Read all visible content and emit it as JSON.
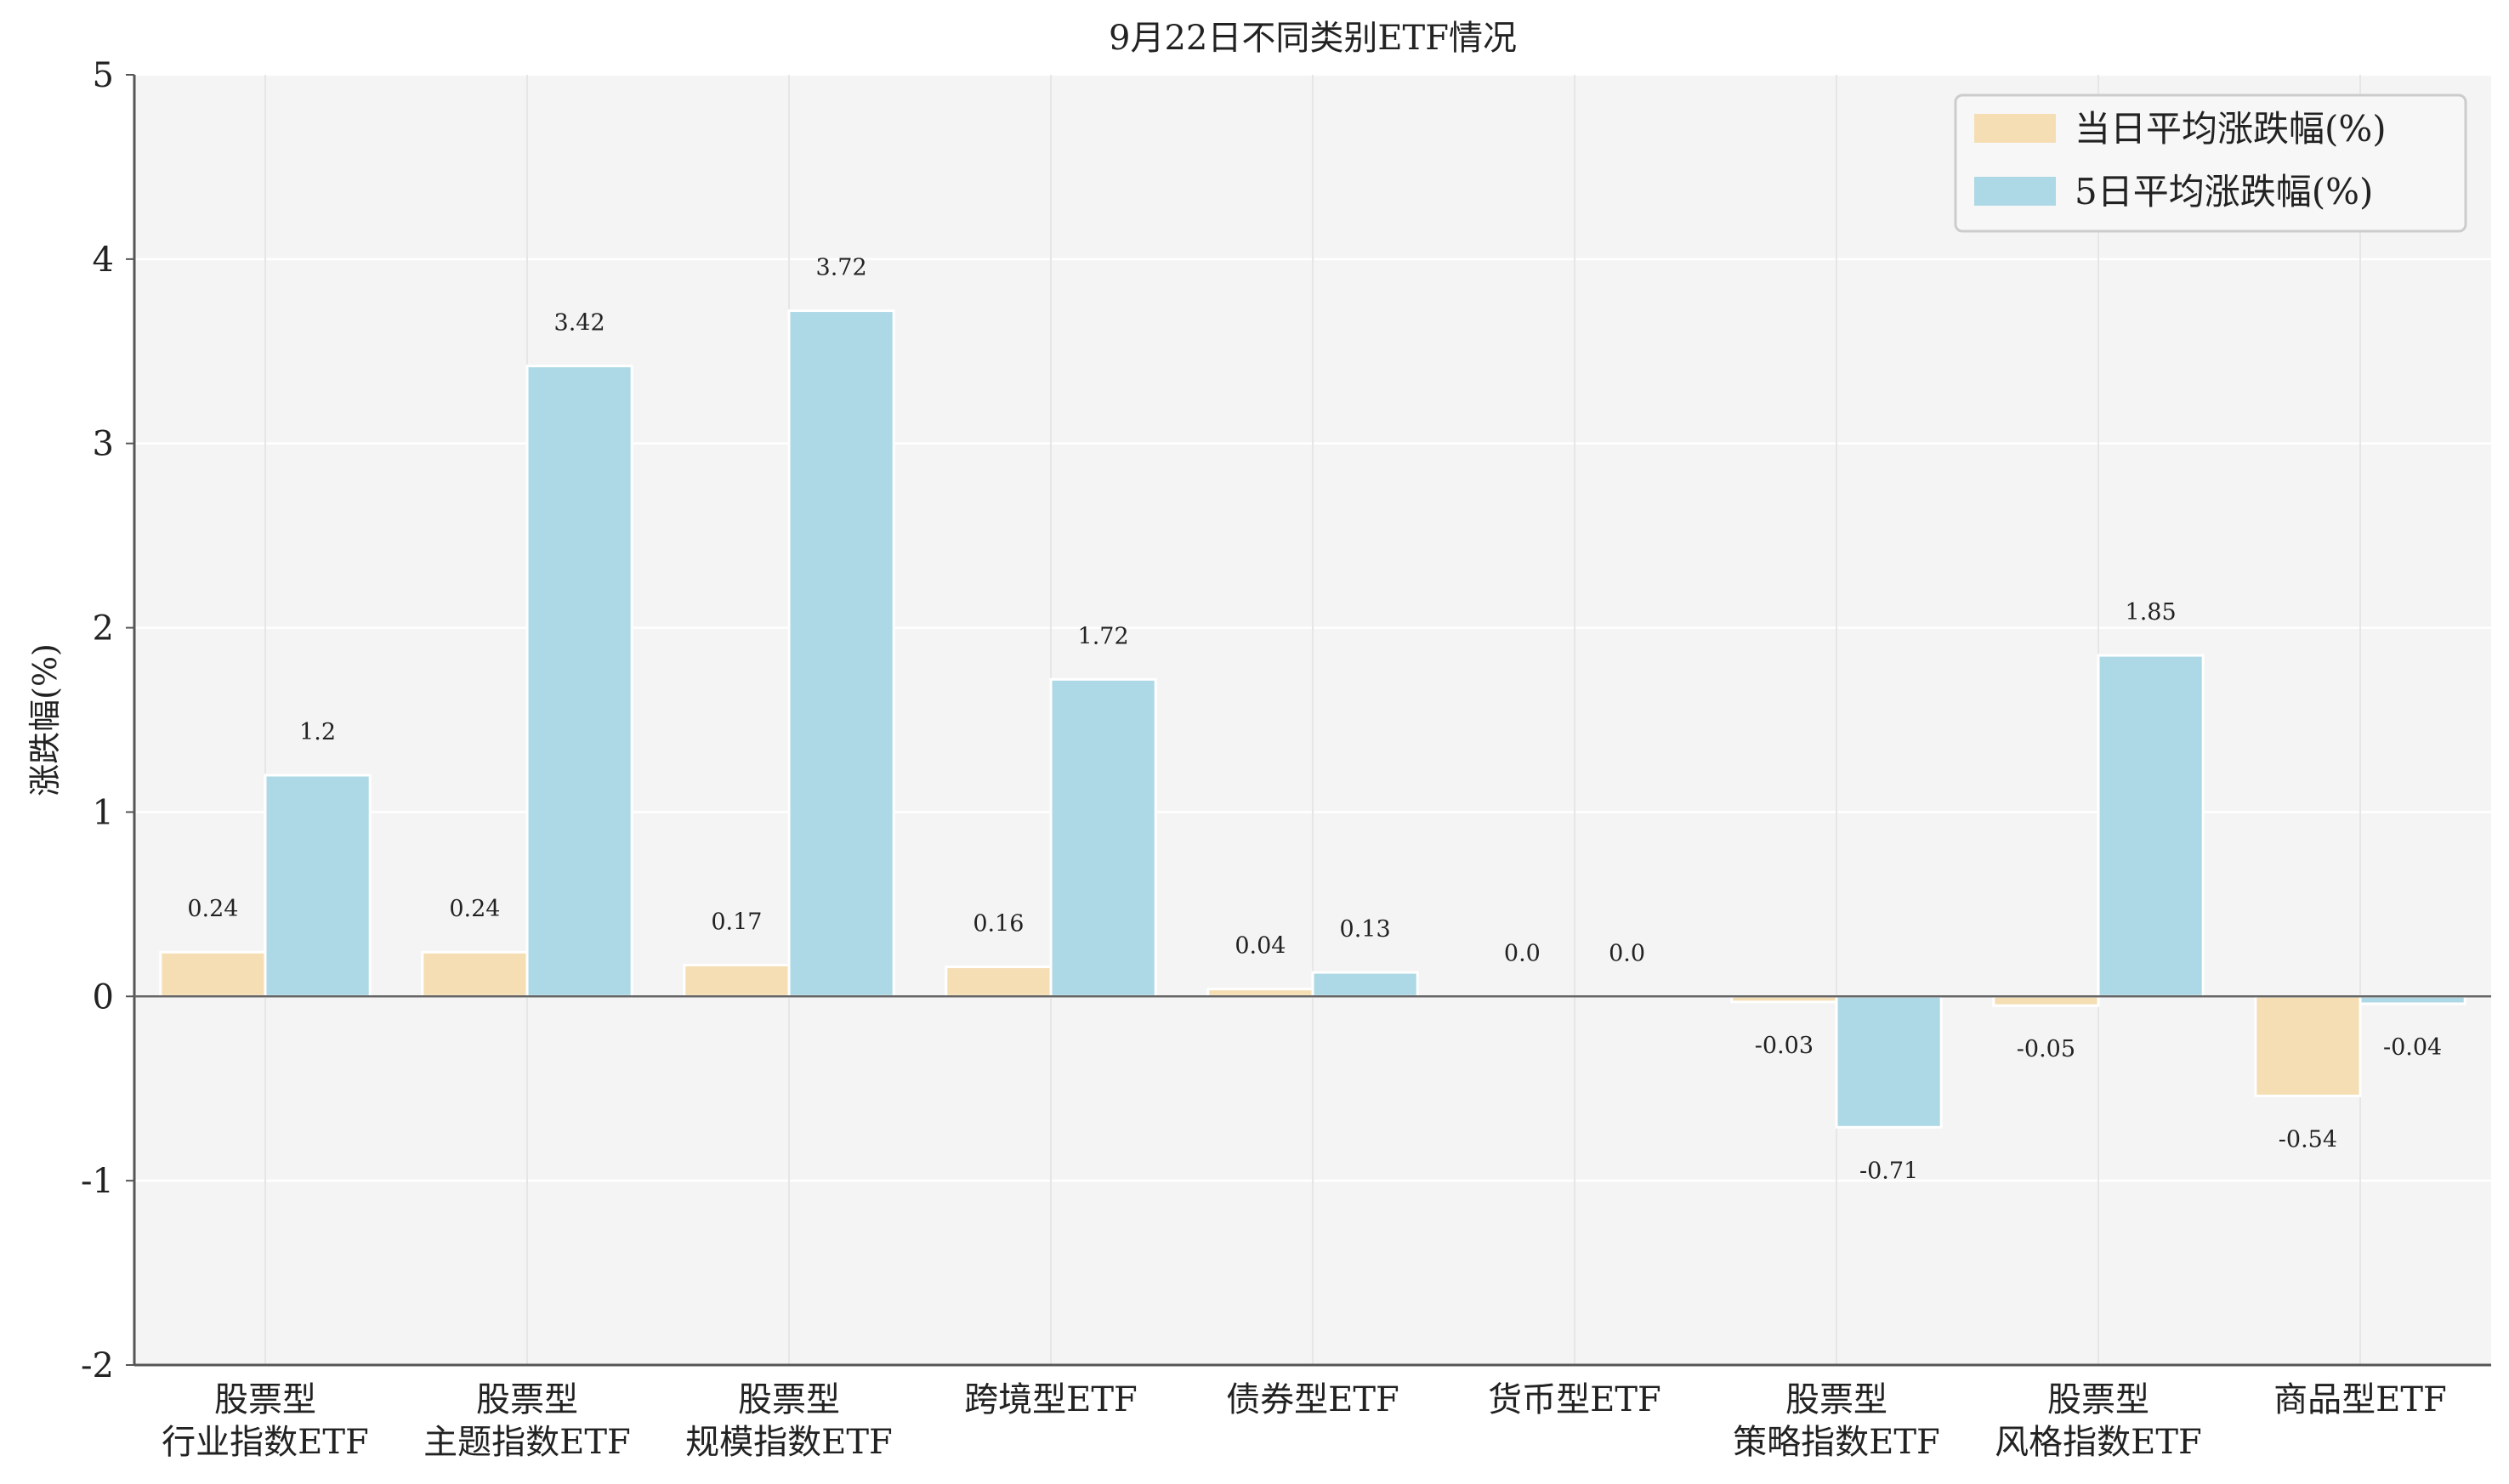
{
  "chart_data": {
    "type": "bar",
    "title": "9月22日不同类别ETF情况",
    "xlabel": "",
    "ylabel": "涨跌幅(%)",
    "ylim": [
      -2,
      5
    ],
    "yticks": [
      "-2",
      "-1",
      "0",
      "1",
      "2",
      "3",
      "4",
      "5"
    ],
    "grid": true,
    "legend_position": "top-right",
    "categories": [
      [
        "股票型",
        "行业指数ETF"
      ],
      [
        "股票型",
        "主题指数ETF"
      ],
      [
        "股票型",
        "规模指数ETF"
      ],
      [
        "跨境型ETF"
      ],
      [
        "债券型ETF"
      ],
      [
        "货币型ETF"
      ],
      [
        "股票型",
        "策略指数ETF"
      ],
      [
        "股票型",
        "风格指数ETF"
      ],
      [
        "商品型ETF"
      ]
    ],
    "series": [
      {
        "name": "当日平均涨跌幅(%)",
        "color": "#F5DEB3",
        "values": [
          0.24,
          0.24,
          0.17,
          0.16,
          0.04,
          0.0,
          -0.03,
          -0.05,
          -0.54
        ],
        "labels": [
          "0.24",
          "0.24",
          "0.17",
          "0.16",
          "0.04",
          "0.0",
          "-0.03",
          "-0.05",
          "-0.54"
        ]
      },
      {
        "name": "5日平均涨跌幅(%)",
        "color": "#ADD8E6",
        "values": [
          1.2,
          3.42,
          3.72,
          1.72,
          0.13,
          0.0,
          -0.71,
          1.85,
          -0.04
        ],
        "labels": [
          "1.2",
          "3.42",
          "3.72",
          "1.72",
          "0.13",
          "0.0",
          "-0.71",
          "1.85",
          "-0.04"
        ]
      }
    ]
  }
}
